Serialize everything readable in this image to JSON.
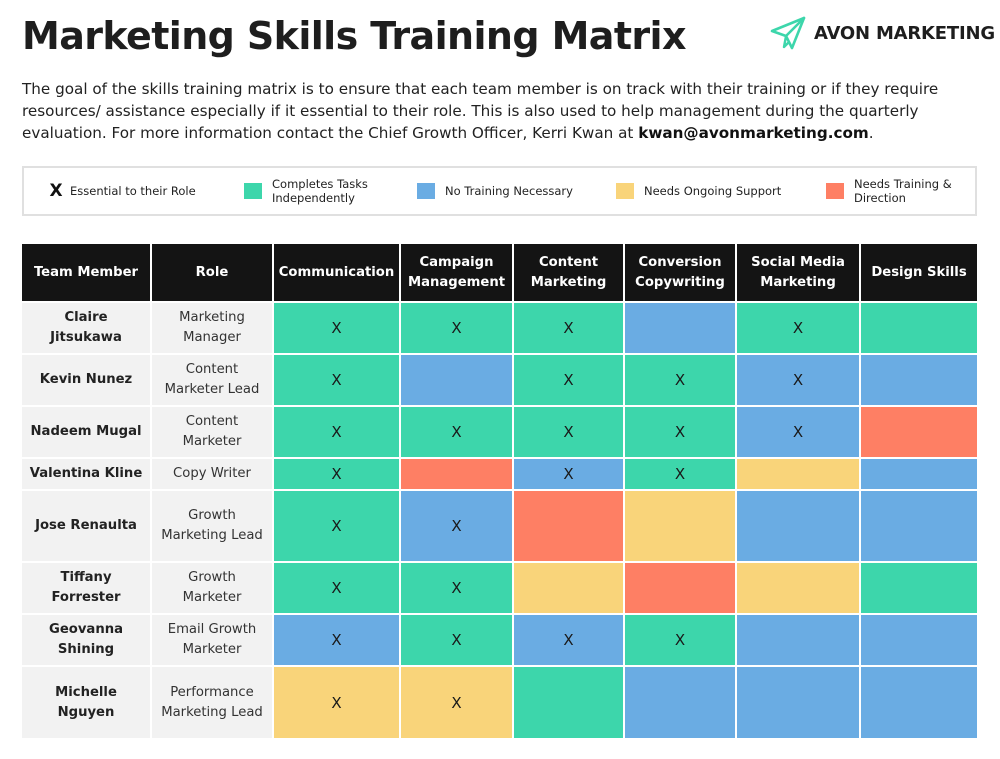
{
  "header": {
    "title": "Marketing Skills Training Matrix",
    "brand": "AVON MARKETING",
    "brand_icon": "paper-plane-icon"
  },
  "intro": {
    "text": "The goal of the skills training matrix is to ensure that each team member is on track with their training or if they require resources/ assistance especially if it essential to their role. This is also used to help management during the quarterly evaluation. For more information contact the Chief Growth Officer, Kerri Kwan at ",
    "email": "kwan@avonmarketing.com",
    "end": "."
  },
  "colors": {
    "green": "#3dd6ab",
    "blue": "#6aace3",
    "yellow": "#f9d47a",
    "red": "#fe7f64"
  },
  "legend": {
    "essential_mark": "X",
    "essential_label": "Essential to their Role",
    "items": [
      {
        "color": "green",
        "label": "Completes Tasks Independently"
      },
      {
        "color": "blue",
        "label": "No Training Necessary"
      },
      {
        "color": "yellow",
        "label": "Needs Ongoing Support"
      },
      {
        "color": "red",
        "label": "Needs Training & Direction"
      }
    ]
  },
  "table": {
    "headers": [
      "Team Member",
      "Role",
      "Communication",
      "Campaign Management",
      "Content Marketing",
      "Conversion Copywriting",
      "Social Media Marketing",
      "Design Skills"
    ],
    "rows": [
      {
        "name": "Claire Jitsukawa",
        "role": "Marketing Manager",
        "cells": [
          {
            "status": "green",
            "mark": "X"
          },
          {
            "status": "green",
            "mark": "X"
          },
          {
            "status": "green",
            "mark": "X"
          },
          {
            "status": "blue",
            "mark": ""
          },
          {
            "status": "green",
            "mark": "X"
          },
          {
            "status": "green",
            "mark": ""
          }
        ]
      },
      {
        "name": "Kevin Nunez",
        "role": "Content Marketer Lead",
        "cells": [
          {
            "status": "green",
            "mark": "X"
          },
          {
            "status": "blue",
            "mark": ""
          },
          {
            "status": "green",
            "mark": "X"
          },
          {
            "status": "green",
            "mark": "X"
          },
          {
            "status": "blue",
            "mark": "X"
          },
          {
            "status": "blue",
            "mark": ""
          }
        ]
      },
      {
        "name": "Nadeem Mugal",
        "role": "Content Marketer",
        "cells": [
          {
            "status": "green",
            "mark": "X"
          },
          {
            "status": "green",
            "mark": "X"
          },
          {
            "status": "green",
            "mark": "X"
          },
          {
            "status": "green",
            "mark": "X"
          },
          {
            "status": "blue",
            "mark": "X"
          },
          {
            "status": "red",
            "mark": ""
          }
        ]
      },
      {
        "name": "Valentina Kline",
        "role": "Copy Writer",
        "cells": [
          {
            "status": "green",
            "mark": "X"
          },
          {
            "status": "red",
            "mark": ""
          },
          {
            "status": "blue",
            "mark": "X"
          },
          {
            "status": "green",
            "mark": "X"
          },
          {
            "status": "yellow",
            "mark": ""
          },
          {
            "status": "blue",
            "mark": ""
          }
        ]
      },
      {
        "name": "Jose Renaulta",
        "role": "Growth Marketing Lead",
        "cells": [
          {
            "status": "green",
            "mark": "X"
          },
          {
            "status": "blue",
            "mark": "X"
          },
          {
            "status": "red",
            "mark": ""
          },
          {
            "status": "yellow",
            "mark": ""
          },
          {
            "status": "blue",
            "mark": ""
          },
          {
            "status": "blue",
            "mark": ""
          }
        ]
      },
      {
        "name": "Tiffany Forrester",
        "role": "Growth Marketer",
        "cells": [
          {
            "status": "green",
            "mark": "X"
          },
          {
            "status": "green",
            "mark": "X"
          },
          {
            "status": "yellow",
            "mark": ""
          },
          {
            "status": "red",
            "mark": ""
          },
          {
            "status": "yellow",
            "mark": ""
          },
          {
            "status": "green",
            "mark": ""
          }
        ]
      },
      {
        "name": "Geovanna Shining",
        "role": "Email Growth Marketer",
        "cells": [
          {
            "status": "blue",
            "mark": "X"
          },
          {
            "status": "green",
            "mark": "X"
          },
          {
            "status": "blue",
            "mark": "X"
          },
          {
            "status": "green",
            "mark": "X"
          },
          {
            "status": "blue",
            "mark": ""
          },
          {
            "status": "blue",
            "mark": ""
          }
        ]
      },
      {
        "name": "Michelle Nguyen",
        "role": "Performance Marketing Lead",
        "cells": [
          {
            "status": "yellow",
            "mark": "X"
          },
          {
            "status": "yellow",
            "mark": "X"
          },
          {
            "status": "green",
            "mark": ""
          },
          {
            "status": "blue",
            "mark": ""
          },
          {
            "status": "blue",
            "mark": ""
          },
          {
            "status": "blue",
            "mark": ""
          }
        ]
      }
    ]
  }
}
